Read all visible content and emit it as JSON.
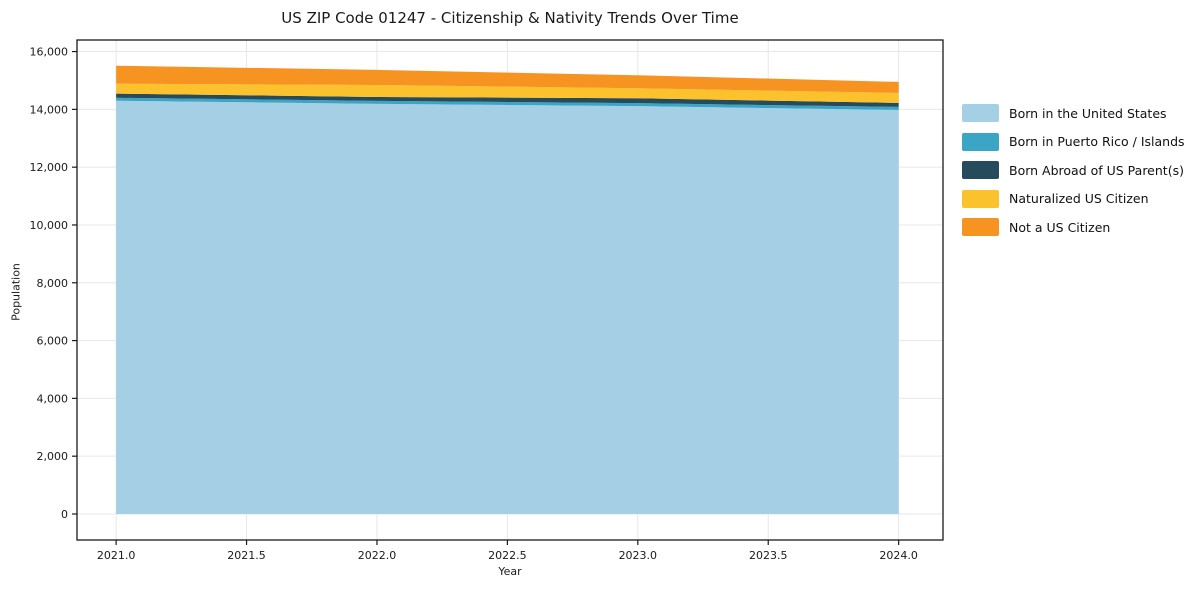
{
  "figure": {
    "background": "#ffffff",
    "plot_background": "#ffffff",
    "grid_color": "#e7e7e7",
    "spine_color": "#1a1a1a",
    "text_color": "#1a1a1a"
  },
  "chart_data": {
    "type": "area",
    "stacked": true,
    "title": "US ZIP Code 01247 - Citizenship & Nativity Trends Over Time",
    "xlabel": "Year",
    "ylabel": "Population",
    "x": [
      2021,
      2022,
      2023,
      2024
    ],
    "series": [
      {
        "name": "Born in the United States",
        "color": "#a5cfe4",
        "values": [
          14300,
          14190,
          14110,
          13980
        ]
      },
      {
        "name": "Born in Puerto Rico / Islands",
        "color": "#3aa5c4",
        "values": [
          100,
          105,
          105,
          105
        ]
      },
      {
        "name": "Born Abroad of US Parent(s)",
        "color": "#264b5d",
        "values": [
          145,
          135,
          170,
          140
        ]
      },
      {
        "name": "Naturalized US Citizen",
        "color": "#fcc22e",
        "values": [
          345,
          415,
          345,
          345
        ]
      },
      {
        "name": "Not a US Citizen",
        "color": "#f69321",
        "values": [
          620,
          520,
          450,
          380
        ]
      }
    ],
    "xticks": {
      "values": [
        2021.0,
        2021.5,
        2022.0,
        2022.5,
        2023.0,
        2023.5,
        2024.0
      ],
      "labels": [
        "2021.0",
        "2021.5",
        "2022.0",
        "2022.5",
        "2023.0",
        "2023.5",
        "2024.0"
      ]
    },
    "yticks": {
      "values": [
        0,
        2000,
        4000,
        6000,
        8000,
        10000,
        12000,
        14000,
        16000
      ],
      "labels": [
        "0",
        "2,000",
        "4,000",
        "6,000",
        "8,000",
        "10,000",
        "12,000",
        "14,000",
        "16,000"
      ]
    },
    "xlim": [
      2020.85,
      2024.17
    ],
    "ylim": [
      -900,
      16400
    ],
    "grid": true,
    "legend_position": "right-outside"
  }
}
